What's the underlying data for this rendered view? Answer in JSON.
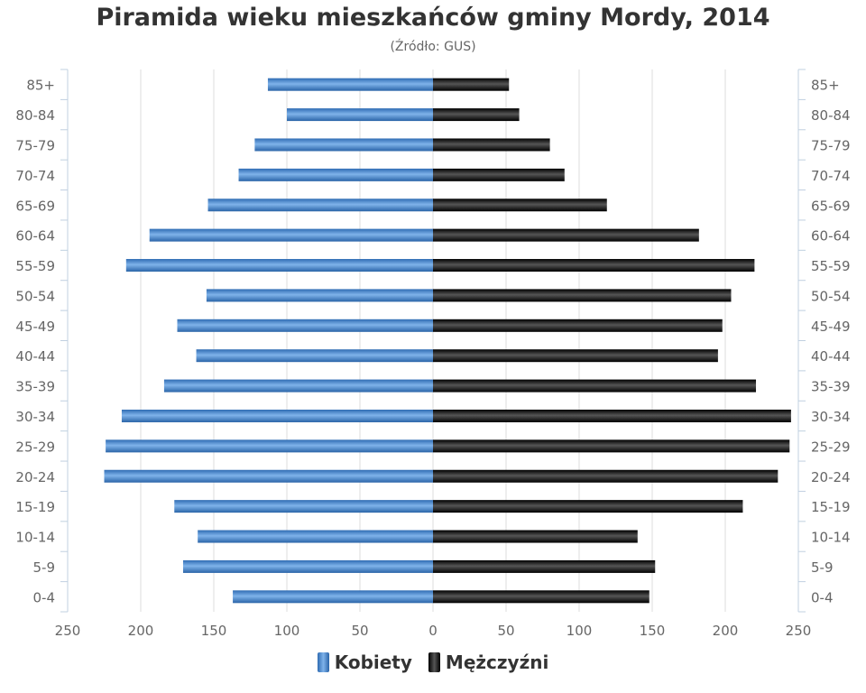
{
  "chart_data": {
    "type": "bar",
    "orientation": "horizontal-population-pyramid",
    "title": "Piramida wieku mieszkańców gminy Mordy, 2014",
    "subtitle": "(Źródło: GUS)",
    "categories": [
      "85+",
      "80-84",
      "75-79",
      "70-74",
      "65-69",
      "60-64",
      "55-59",
      "50-54",
      "45-49",
      "40-44",
      "35-39",
      "30-34",
      "25-29",
      "20-24",
      "15-19",
      "10-14",
      "5-9",
      "0-4"
    ],
    "series": [
      {
        "name": "Kobiety",
        "color": "#4f8cd4",
        "side": "left",
        "values": [
          113,
          100,
          122,
          133,
          154,
          194,
          210,
          155,
          175,
          162,
          184,
          213,
          224,
          225,
          177,
          161,
          171,
          137
        ]
      },
      {
        "name": "Mężczyźni",
        "color": "#1a1a1a",
        "side": "right",
        "values": [
          52,
          59,
          80,
          90,
          119,
          182,
          220,
          204,
          198,
          195,
          221,
          245,
          244,
          236,
          212,
          140,
          152,
          148
        ]
      }
    ],
    "xlim": [
      -250,
      250
    ],
    "x_tick_labels": [
      "250",
      "200",
      "150",
      "100",
      "50",
      "0",
      "50",
      "100",
      "150",
      "200",
      "250"
    ],
    "grid": true,
    "legend_position": "bottom"
  }
}
